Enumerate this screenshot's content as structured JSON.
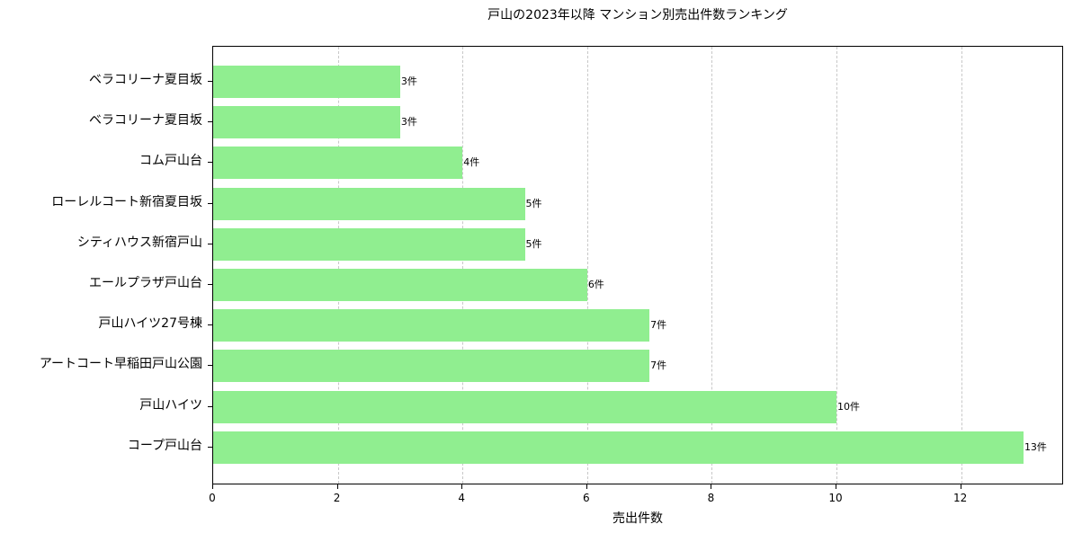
{
  "chart_data": {
    "type": "bar",
    "orientation": "horizontal",
    "title": "戸山の2023年以降 マンション別売出件数ランキング",
    "xlabel": "売出件数",
    "ylabel": "",
    "xlim": [
      0,
      13.65
    ],
    "xticks": [
      0,
      2,
      4,
      6,
      8,
      10,
      12
    ],
    "grid": {
      "x": true,
      "y": false,
      "style": "dashed"
    },
    "bar_color": "#90ee90",
    "categories": [
      "ベラコリーナ夏目坂",
      "ベラコリーナ夏目坂",
      "コム戸山台",
      "ローレルコート新宿夏目坂",
      "シティハウス新宿戸山",
      "エールプラザ戸山台",
      "戸山ハイツ27号棟",
      "アートコート早稲田戸山公園",
      "戸山ハイツ",
      "コープ戸山台"
    ],
    "values": [
      3,
      3,
      4,
      5,
      5,
      6,
      7,
      7,
      10,
      13
    ],
    "data_labels": [
      "3件",
      "3件",
      "4件",
      "5件",
      "5件",
      "6件",
      "7件",
      "7件",
      "10件",
      "13件"
    ]
  }
}
